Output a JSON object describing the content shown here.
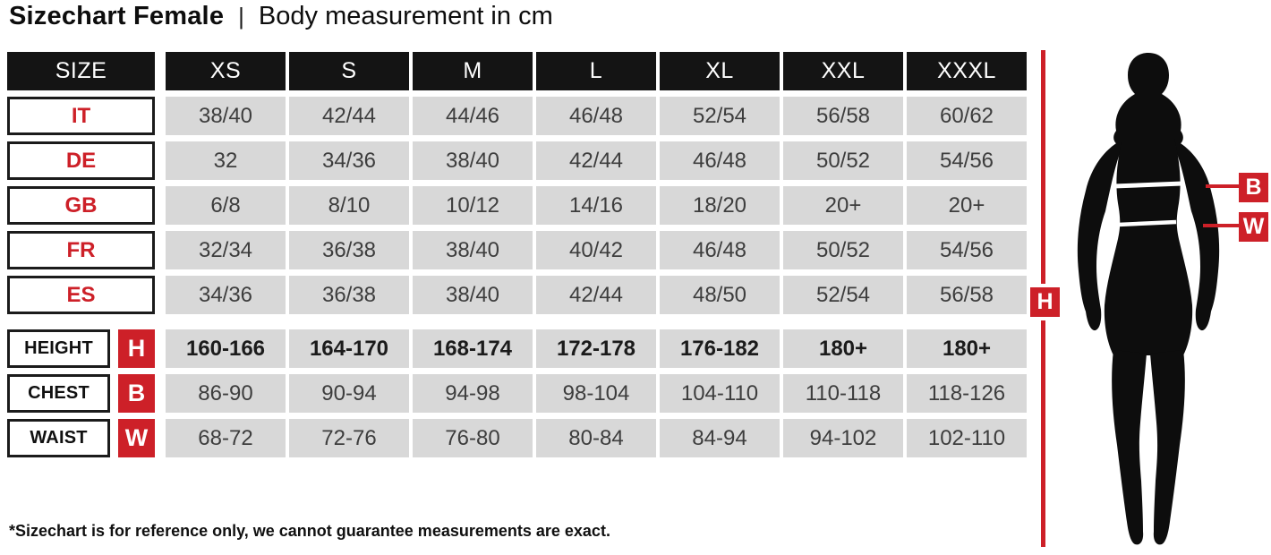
{
  "header": {
    "title": "Sizechart Female",
    "separator": "|",
    "subtitle": "Body measurement in cm"
  },
  "chart_data": {
    "type": "table",
    "title": "Sizechart Female — Body measurement in cm",
    "corner_label": "SIZE",
    "columns": [
      "XS",
      "S",
      "M",
      "L",
      "XL",
      "XXL",
      "XXXL"
    ],
    "rows": [
      {
        "label": "IT",
        "group": "country",
        "values": [
          "38/40",
          "42/44",
          "44/46",
          "46/48",
          "52/54",
          "56/58",
          "60/62"
        ]
      },
      {
        "label": "DE",
        "group": "country",
        "values": [
          "32",
          "34/36",
          "38/40",
          "42/44",
          "46/48",
          "50/52",
          "54/56"
        ]
      },
      {
        "label": "GB",
        "group": "country",
        "values": [
          "6/8",
          "8/10",
          "10/12",
          "14/16",
          "18/20",
          "20+",
          "20+"
        ]
      },
      {
        "label": "FR",
        "group": "country",
        "values": [
          "32/34",
          "36/38",
          "38/40",
          "40/42",
          "46/48",
          "50/52",
          "54/56"
        ]
      },
      {
        "label": "ES",
        "group": "country",
        "values": [
          "34/36",
          "36/38",
          "38/40",
          "42/44",
          "48/50",
          "52/54",
          "56/58"
        ]
      },
      {
        "label": "HEIGHT",
        "badge": "H",
        "group": "measurement",
        "emphasis": true,
        "values": [
          "160-166",
          "164-170",
          "168-174",
          "172-178",
          "176-182",
          "180+",
          "180+"
        ]
      },
      {
        "label": "CHEST",
        "badge": "B",
        "group": "measurement",
        "emphasis": false,
        "values": [
          "86-90",
          "90-94",
          "94-98",
          "98-104",
          "104-110",
          "110-118",
          "118-126"
        ]
      },
      {
        "label": "WAIST",
        "badge": "W",
        "group": "measurement",
        "emphasis": false,
        "values": [
          "68-72",
          "72-76",
          "76-80",
          "80-84",
          "84-94",
          "94-102",
          "102-110"
        ]
      }
    ]
  },
  "figure": {
    "height_label": "H",
    "chest_label": "B",
    "waist_label": "W"
  },
  "footnote": "*Sizechart is for reference only, we cannot guarantee measurements are exact.",
  "colors": {
    "accent_red": "#cd2028",
    "cell_gray": "#d8d8d8",
    "header_black": "#141414"
  }
}
